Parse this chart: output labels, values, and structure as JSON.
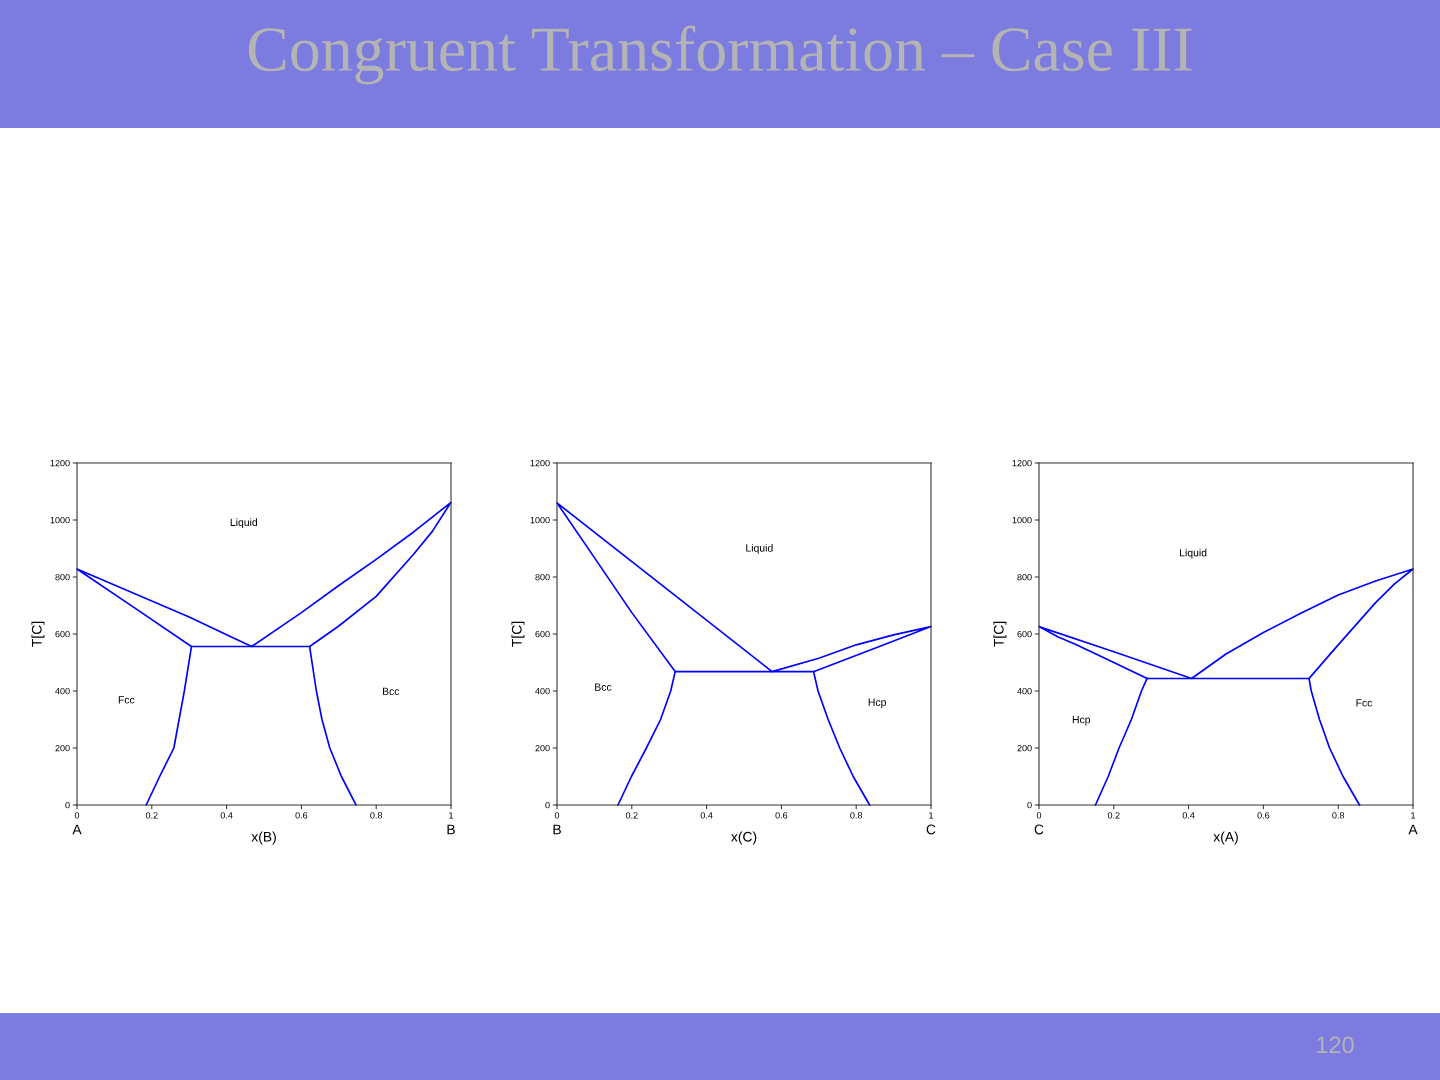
{
  "chart_data": [
    {
      "type": "line",
      "title": "Congruent Transformation – Case III",
      "xlabel": "x(B)",
      "ylabel": "T[C]",
      "xlim": [
        0,
        1
      ],
      "ylim": [
        0,
        1200
      ],
      "xticks": [
        0,
        0.2,
        0.4,
        0.6,
        0.8,
        1
      ],
      "yticks": [
        0,
        200,
        400,
        600,
        800,
        1000,
        1200
      ],
      "grid": false,
      "marker": "none",
      "line_style": "solid",
      "series": [
        {
          "color": "#0000ff",
          "x": [
            0.185,
            0.221,
            0.259,
            0.273,
            0.287,
            0.306,
            0.622,
            0.64,
            0.655,
            0.676,
            0.707,
            0.746
          ],
          "values": [
            0,
            100,
            200,
            300,
            400,
            556,
            556,
            400,
            300,
            200,
            100,
            0
          ]
        },
        {
          "color": "#0000ff",
          "x": [
            0.306,
            0.15,
            0,
            0.1,
            0.2,
            0.3,
            0.4,
            0.467,
            0.6,
            0.7,
            0.8,
            0.9,
            1,
            0.95,
            0.9,
            0.8,
            0.7,
            0.622
          ],
          "values": [
            556,
            695,
            828,
            772,
            716,
            660,
            597,
            556,
            675,
            770,
            862,
            958,
            1062,
            960,
            880,
            732,
            628,
            556
          ]
        }
      ],
      "annotations": [
        "Liquid",
        "Fcc",
        "Bcc",
        "A",
        "B"
      ]
    },
    {
      "type": "line",
      "xlabel": "x(C)",
      "ylabel": "T[C]",
      "xlim": [
        0,
        1
      ],
      "ylim": [
        0,
        1200
      ],
      "xticks": [
        0,
        0.2,
        0.4,
        0.6,
        0.8,
        1
      ],
      "yticks": [
        0,
        200,
        400,
        600,
        800,
        1000,
        1200
      ],
      "grid": false,
      "marker": "none",
      "line_style": "solid",
      "series": [
        {
          "color": "#0000ff",
          "x": [
            0.163,
            0.199,
            0.239,
            0.277,
            0.304,
            0.316,
            0.686,
            0.698,
            0.725,
            0.756,
            0.792,
            0.836
          ],
          "values": [
            0,
            100,
            200,
            300,
            400,
            468,
            468,
            400,
            300,
            200,
            100,
            0
          ]
        },
        {
          "color": "#0000ff",
          "x": [
            0.316,
            0.2,
            0.1,
            0,
            0.3,
            0.575,
            0.7,
            0.8,
            0.9,
            1,
            0.85,
            0.686
          ],
          "values": [
            468,
            675,
            868,
            1060,
            751,
            468,
            515,
            562,
            597,
            626,
            550,
            468
          ]
        }
      ],
      "annotations": [
        "Liquid",
        "Bcc",
        "Hcp",
        "B",
        "C"
      ]
    },
    {
      "type": "line",
      "xlabel": "x(A)",
      "ylabel": "T[C]",
      "xlim": [
        0,
        1
      ],
      "ylim": [
        0,
        1200
      ],
      "xticks": [
        0,
        0.2,
        0.4,
        0.6,
        0.8,
        1
      ],
      "yticks": [
        0,
        200,
        400,
        600,
        800,
        1000,
        1200
      ],
      "grid": false,
      "marker": "none",
      "line_style": "solid",
      "series": [
        {
          "color": "#0000ff",
          "x": [
            0.151,
            0.185,
            0.214,
            0.247,
            0.274,
            0.289,
            0.722,
            0.728,
            0.75,
            0.777,
            0.813,
            0.857
          ],
          "values": [
            0,
            100,
            200,
            300,
            400,
            444,
            444,
            400,
            300,
            200,
            100,
            0
          ]
        },
        {
          "color": "#0000ff",
          "x": [
            0.289,
            0.2,
            0.1,
            0.05,
            0,
            0.2,
            0.408,
            0.5,
            0.6,
            0.7,
            0.8,
            0.9,
            1,
            0.95,
            0.9,
            0.8,
            0.722
          ],
          "values": [
            444,
            500,
            562,
            590,
            626,
            538,
            444,
            530,
            605,
            673,
            737,
            786,
            828,
            775,
            710,
            562,
            444
          ]
        }
      ],
      "annotations": [
        "Liquid",
        "Hcp",
        "Fcc",
        "C",
        "A",
        "120"
      ]
    }
  ]
}
